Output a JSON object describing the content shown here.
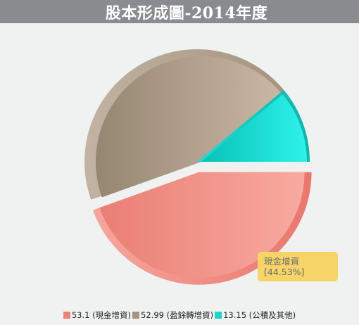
{
  "title": "股本形成圖-2014年度",
  "chart_data": {
    "type": "pie",
    "title": "股本形成圖-2014年度",
    "slices": [
      {
        "name": "現金增資",
        "value": 53.1,
        "color": "#ec8379",
        "legend": "53.1 (現金增資)"
      },
      {
        "name": "盈餘轉增資",
        "value": 52.99,
        "color": "#a69580",
        "legend": "52.99 (盈餘轉增資)"
      },
      {
        "name": "公積及其他",
        "value": 13.15,
        "color": "#1ed5cc",
        "legend": "13.15 (公積及其他)"
      }
    ],
    "exploded": "現金增資",
    "tooltip": {
      "name": "現金增資",
      "percent": "[44.53%]"
    }
  }
}
